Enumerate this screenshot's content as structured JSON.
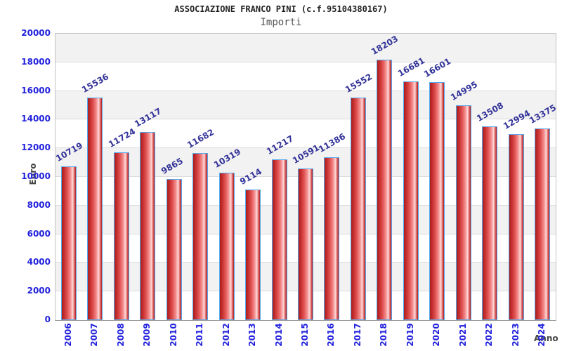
{
  "title": "ASSOCIAZIONE FRANCO PINI (c.f.95104380167)",
  "subtitle": "Importi",
  "chart_data": {
    "type": "bar",
    "title": "ASSOCIAZIONE FRANCO PINI (c.f.95104380167)",
    "subtitle": "Importi",
    "xlabel": "Anno",
    "ylabel": "Euro",
    "categories": [
      "2006",
      "2007",
      "2008",
      "2009",
      "2010",
      "2011",
      "2012",
      "2013",
      "2014",
      "2015",
      "2016",
      "2017",
      "2018",
      "2019",
      "2020",
      "2021",
      "2022",
      "2023",
      "2024"
    ],
    "values": [
      10719,
      15536,
      11724,
      13117,
      9865,
      11682,
      10319,
      9114,
      11217,
      10591,
      11386,
      15552,
      18203,
      16681,
      16601,
      14995,
      13508,
      12994,
      13375
    ],
    "ylim": [
      0,
      20000
    ],
    "ytick_step": 2000,
    "grid": true,
    "legend": "none",
    "colors": {
      "bar_border": "#55aaee",
      "bar_dark": "#a81e1e",
      "bar_light": "#fdd9d9",
      "value_label": "#333399",
      "tick_label": "#2222dd",
      "axis_title": "#444444",
      "band_alt": "#f2f2f2",
      "gridline": "#dcdcdc"
    }
  }
}
